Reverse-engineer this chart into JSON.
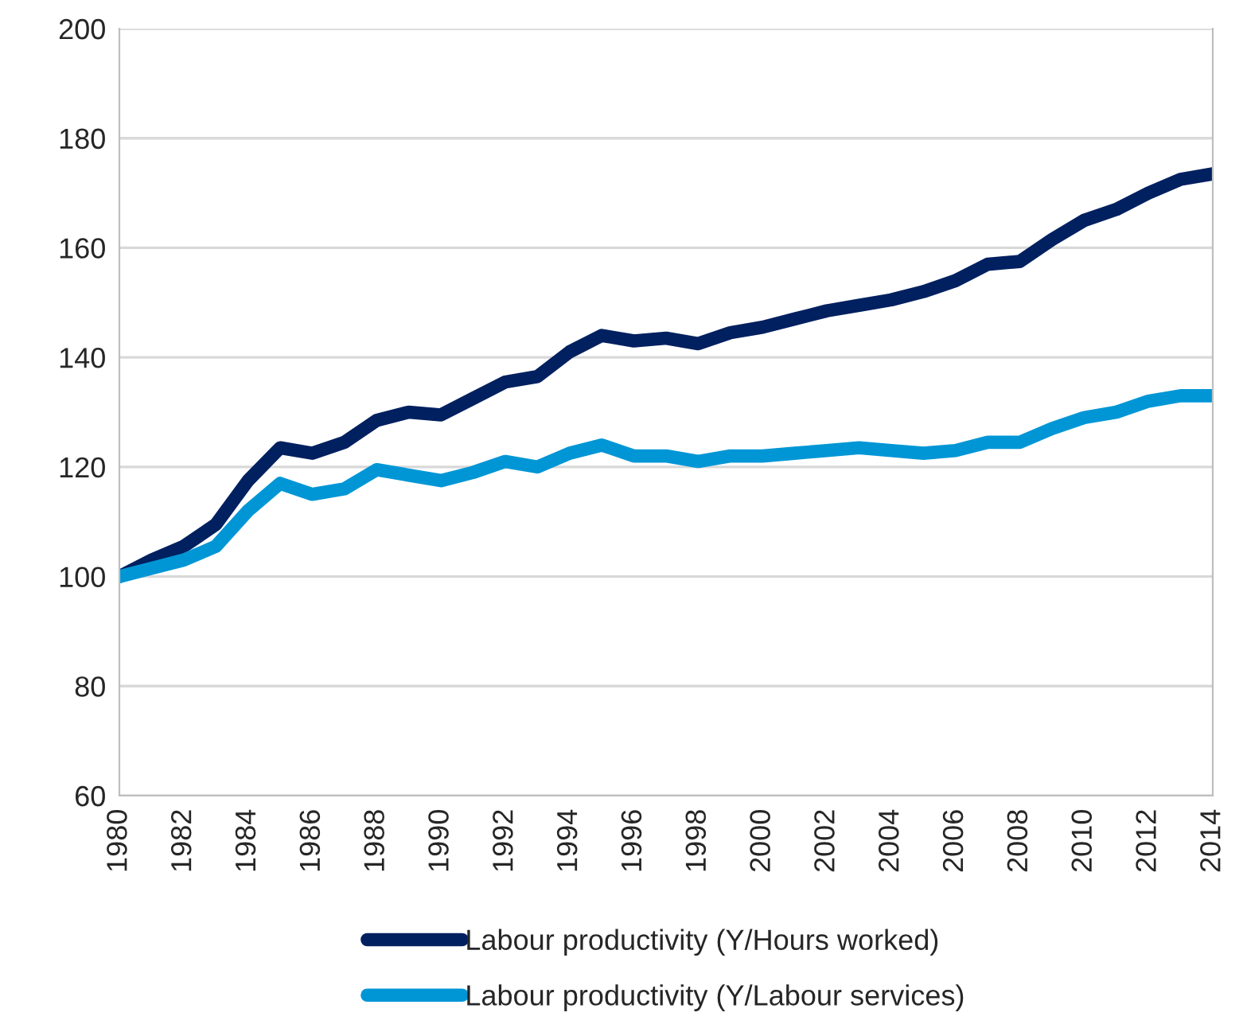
{
  "chart_data": {
    "type": "line",
    "x": [
      1980,
      1981,
      1982,
      1983,
      1984,
      1985,
      1986,
      1987,
      1988,
      1989,
      1990,
      1991,
      1992,
      1993,
      1994,
      1995,
      1996,
      1997,
      1998,
      1999,
      2000,
      2001,
      2002,
      2003,
      2004,
      2005,
      2006,
      2007,
      2008,
      2009,
      2010,
      2011,
      2012,
      2013,
      2014
    ],
    "series": [
      {
        "name": "Labour productivity (Y/Hours worked)",
        "color": "#002060",
        "values": [
          100,
          103,
          105.5,
          109.5,
          117.5,
          123.5,
          122.5,
          124.5,
          128.5,
          130,
          129.5,
          132.5,
          135.5,
          136.5,
          141,
          144,
          143,
          143.5,
          142.5,
          144.5,
          145.5,
          147,
          148.5,
          149.5,
          150.5,
          152,
          154,
          157,
          157.5,
          161.5,
          165,
          167,
          170,
          172.5,
          173.5
        ]
      },
      {
        "name": "Labour productivity (Y/Labour services)",
        "color": "#0096d6",
        "values": [
          100,
          101.5,
          103,
          105.5,
          112,
          117,
          115,
          116,
          119.5,
          118.5,
          117.5,
          119,
          121,
          120,
          122.5,
          124,
          122,
          122,
          121,
          122,
          122,
          122.5,
          123,
          123.5,
          123,
          122.5,
          123,
          124.5,
          124.5,
          127,
          129,
          130,
          132,
          133,
          133
        ]
      }
    ],
    "xlim": [
      1980,
      2014
    ],
    "xticks": [
      1980,
      1982,
      1984,
      1986,
      1988,
      1990,
      1992,
      1994,
      1996,
      1998,
      2000,
      2002,
      2004,
      2006,
      2008,
      2010,
      2012,
      2014
    ],
    "ylim": [
      60,
      200
    ],
    "yticks": [
      60,
      80,
      100,
      120,
      140,
      160,
      180,
      200
    ],
    "grid": "y",
    "legend": "bottom",
    "marker": "none",
    "line_style": "solid"
  }
}
